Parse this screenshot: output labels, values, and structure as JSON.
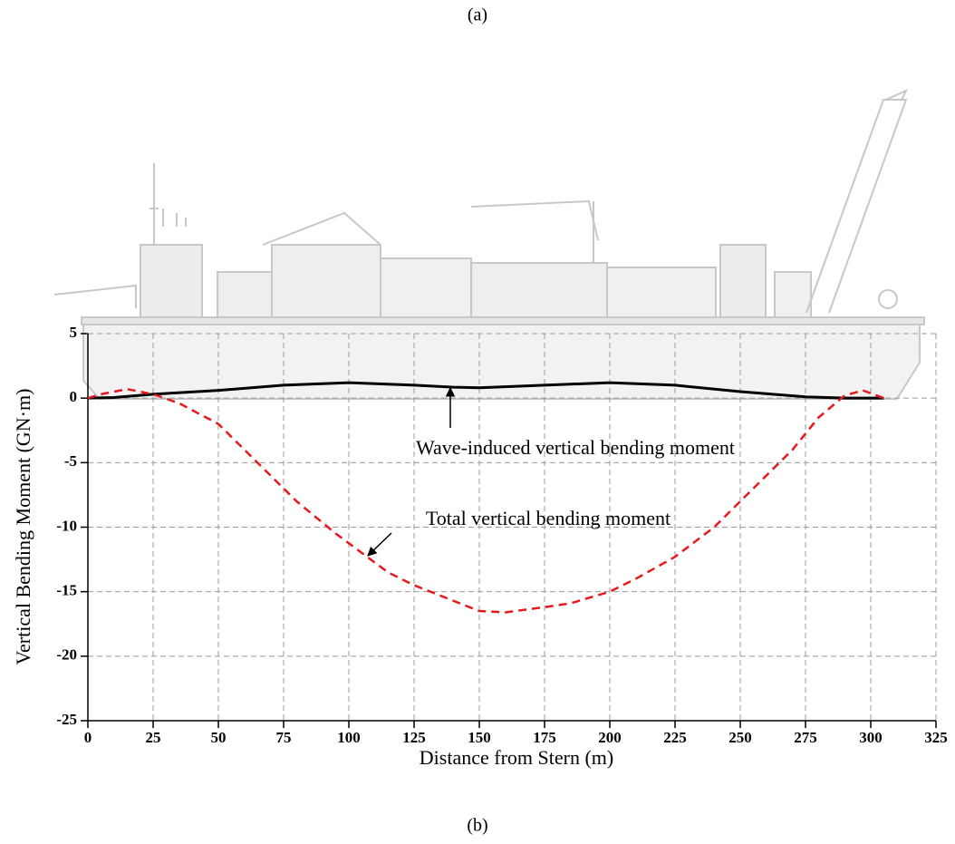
{
  "top_label": "(a)",
  "bottom_label": "(b)",
  "chart_data": {
    "type": "line",
    "x_label": "Distance from Stern (m)",
    "y_label": "Vertical Bending Moment (GN·m)",
    "xlim": [
      0,
      325
    ],
    "xticks": [
      0,
      25,
      50,
      75,
      100,
      125,
      150,
      175,
      200,
      225,
      250,
      275,
      300,
      325
    ],
    "ylim": [
      -25,
      5
    ],
    "yticks": [
      5,
      0,
      -5,
      -10,
      -15,
      -20,
      -25
    ],
    "grid": true,
    "series": [
      {
        "name": "Wave-induced vertical bending moment",
        "color": "#000000",
        "line_style": "solid",
        "x": [
          0,
          10,
          25,
          50,
          75,
          100,
          125,
          140,
          150,
          175,
          200,
          225,
          250,
          275,
          290,
          305
        ],
        "values": [
          0,
          0.05,
          0.3,
          0.6,
          1.0,
          1.2,
          1.0,
          0.85,
          0.8,
          1.0,
          1.2,
          1.0,
          0.5,
          0.1,
          0,
          0
        ]
      },
      {
        "name": "Total vertical bending moment",
        "color": "#e8191c",
        "line_style": "dashed",
        "x": [
          0,
          5,
          15,
          25,
          35,
          50,
          65,
          80,
          95,
          105,
          115,
          125,
          140,
          150,
          160,
          175,
          185,
          200,
          210,
          225,
          240,
          255,
          270,
          280,
          290,
          297,
          305
        ],
        "values": [
          0,
          0.3,
          0.7,
          0.3,
          -0.4,
          -2,
          -5,
          -8,
          -10.5,
          -12,
          -13.5,
          -14.5,
          -15.7,
          -16.5,
          -16.6,
          -16.2,
          -15.9,
          -15,
          -14,
          -12.3,
          -10,
          -7,
          -4,
          -1.5,
          0.2,
          0.6,
          0
        ]
      }
    ]
  }
}
